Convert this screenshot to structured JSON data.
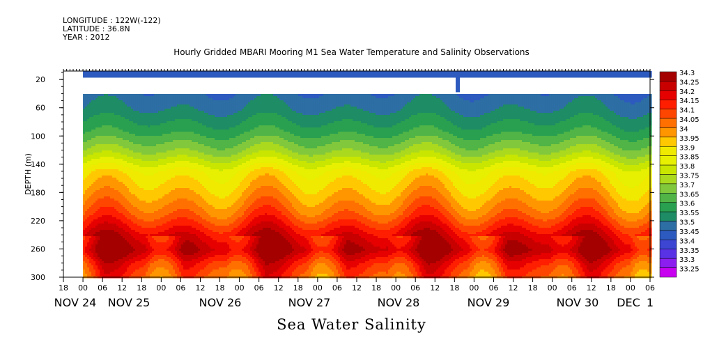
{
  "header": {
    "longitude": "LONGITUDE : 122W(-122)",
    "latitude": "LATITUDE : 36.8N",
    "year": "YEAR : 2012"
  },
  "chart_data": {
    "type": "heatmap",
    "title": "Hourly Gridded MBARI Mooring M1 Sea Water Temperature and Salinity Observations",
    "variable_label": "Sea Water Salinity",
    "ylabel": "DEPTH (m)",
    "y_ticks": [
      20,
      60,
      100,
      140,
      180,
      220,
      260,
      300
    ],
    "ylim": [
      300,
      8
    ],
    "x_hour_labels": [
      "18",
      "00",
      "06",
      "12",
      "18",
      "00",
      "06",
      "12",
      "18",
      "00",
      "06",
      "12",
      "18",
      "00",
      "06",
      "12",
      "18",
      "00",
      "06",
      "12",
      "18",
      "00",
      "06",
      "12",
      "18",
      "00",
      "06",
      "12",
      "18",
      "00",
      "06"
    ],
    "x_date_labels": [
      "NOV 24",
      "NOV 25",
      "NOV 26",
      "NOV 27",
      "NOV 28",
      "NOV 29",
      "NOV 30",
      "DEC",
      "1"
    ],
    "xlim_hours": [
      -6,
      174
    ],
    "data_start_hour": 0,
    "colorbar_levels": [
      "34.3",
      "34.25",
      "34.2",
      "34.15",
      "34.1",
      "34.05",
      "34",
      "33.95",
      "33.9",
      "33.85",
      "33.8",
      "33.75",
      "33.7",
      "33.65",
      "33.6",
      "33.55",
      "33.5",
      "33.45",
      "33.4",
      "33.35",
      "33.3",
      "33.25"
    ],
    "colorbar_colors": [
      "#a50000",
      "#c80000",
      "#e60000",
      "#ff1e00",
      "#ff4600",
      "#ff7000",
      "#ff9600",
      "#ffc800",
      "#f0ea00",
      "#e6f000",
      "#c8e600",
      "#aad91e",
      "#82c83c",
      "#50b446",
      "#28a050",
      "#1e8c64",
      "#2d6ea5",
      "#2d5abe",
      "#3c46d2",
      "#5a32e6",
      "#8c1ef0",
      "#c800f0"
    ],
    "depth_profile": {
      "depths": [
        10,
        38,
        60,
        90,
        120,
        150,
        180,
        210,
        240,
        260,
        280,
        300
      ],
      "salinity": [
        33.4,
        33.46,
        33.5,
        33.58,
        33.7,
        33.87,
        33.95,
        34.05,
        34.2,
        34.27,
        34.15,
        34.08
      ]
    },
    "surface_sensor_depth": 10,
    "data_gap_depth_range": [
      14,
      38
    ],
    "missing_interval_hours": [
      0,
      0
    ]
  }
}
